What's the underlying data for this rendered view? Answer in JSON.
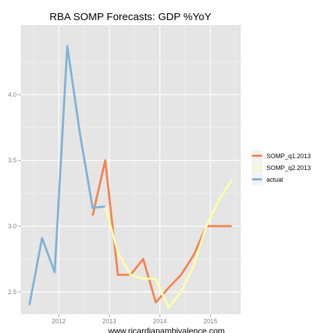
{
  "chart_data": {
    "type": "line",
    "title": "RBA SOMP Forecasts: GDP %YoY",
    "xlabel": "",
    "ylabel": "",
    "caption": "www.ricardianambivalence.com",
    "x_ticks": [
      {
        "value": 2012,
        "label": "2012"
      },
      {
        "value": 2013,
        "label": "2013"
      },
      {
        "value": 2014,
        "label": "2014"
      },
      {
        "value": 2015,
        "label": "2015"
      }
    ],
    "y_ticks": [
      {
        "value": 2.5,
        "label": "2.5"
      },
      {
        "value": 3.0,
        "label": "3.0"
      },
      {
        "value": 3.5,
        "label": "3.5"
      },
      {
        "value": 4.0,
        "label": "4.0"
      }
    ],
    "xlim": [
      2011.25,
      2015.6
    ],
    "ylim": [
      2.33,
      4.53
    ],
    "grid": true,
    "legend_position": "right",
    "background": "#e5e5e5",
    "grid_color": "#ffffff",
    "series": [
      {
        "name": "SOMP_q1.2013",
        "color": "#f4834f",
        "points": [
          [
            2012.67,
            3.08
          ],
          [
            2012.92,
            3.5
          ],
          [
            2013.17,
            2.63
          ],
          [
            2013.42,
            2.63
          ],
          [
            2013.67,
            2.75
          ],
          [
            2013.92,
            2.42
          ],
          [
            2014.17,
            2.53
          ],
          [
            2014.42,
            2.63
          ],
          [
            2014.67,
            2.78
          ],
          [
            2014.92,
            3.0
          ],
          [
            2015.17,
            3.0
          ],
          [
            2015.42,
            3.0
          ]
        ]
      },
      {
        "name": "SOMP_q2.2013",
        "color": "#fefeaa",
        "points": [
          [
            2012.92,
            3.15
          ],
          [
            2013.17,
            2.8
          ],
          [
            2013.42,
            2.63
          ],
          [
            2013.67,
            2.6
          ],
          [
            2013.92,
            2.6
          ],
          [
            2014.17,
            2.38
          ],
          [
            2014.42,
            2.5
          ],
          [
            2014.67,
            2.7
          ],
          [
            2014.92,
            3.0
          ],
          [
            2015.17,
            3.2
          ],
          [
            2015.42,
            3.35
          ]
        ]
      },
      {
        "name": "actual",
        "color": "#7fb2d5",
        "points": [
          [
            2011.42,
            2.4
          ],
          [
            2011.67,
            2.91
          ],
          [
            2011.92,
            2.65
          ],
          [
            2012.17,
            4.37
          ],
          [
            2012.42,
            3.7
          ],
          [
            2012.67,
            3.14
          ],
          [
            2012.92,
            3.15
          ]
        ]
      }
    ]
  }
}
